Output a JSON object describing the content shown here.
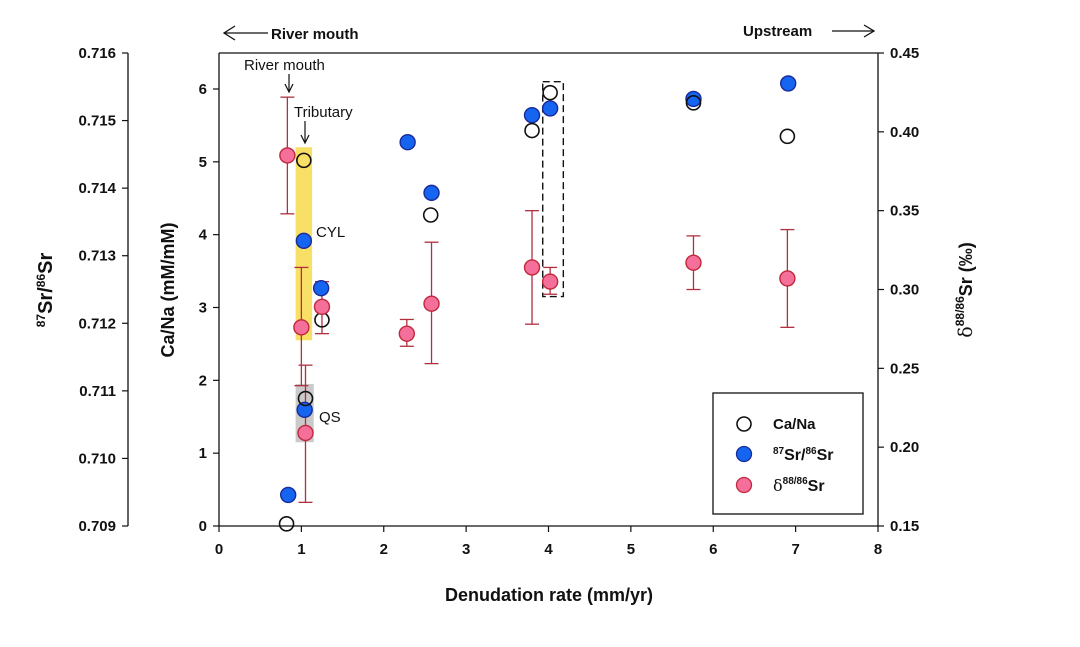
{
  "chart_data": {
    "type": "scatter",
    "title": "",
    "xlabel": "Denudation rate (mm/yr)",
    "xlim": [
      0,
      8
    ],
    "xticks": [
      "0",
      "1",
      "2",
      "3",
      "4",
      "5",
      "6",
      "7",
      "8"
    ],
    "grid": false,
    "legend_position": "bottom-right",
    "axes": {
      "ca_na": {
        "label": "Ca/Na (mM/mM)",
        "ylim": [
          0,
          6.5
        ],
        "ticks": [
          "0",
          "1",
          "2",
          "3",
          "4",
          "5",
          "6"
        ],
        "tick_values": [
          0,
          1,
          2,
          3,
          4,
          5,
          6
        ],
        "side": "left-inner"
      },
      "sr_ratio": {
        "label_sup": "87",
        "label_mid": "Sr/",
        "label_sup2": "86",
        "label_end": "Sr",
        "ylim": [
          0.709,
          0.716
        ],
        "ticks": [
          "0.709",
          "0.710",
          "0.711",
          "0.712",
          "0.713",
          "0.714",
          "0.715",
          "0.716"
        ],
        "tick_values": [
          0.709,
          0.71,
          0.711,
          0.712,
          0.713,
          0.714,
          0.715,
          0.716
        ],
        "side": "left-outer"
      },
      "delta_sr": {
        "label_delta": "δ",
        "label_sup": "88/86",
        "label_end": "Sr (‰)",
        "ylim": [
          0.15,
          0.45
        ],
        "ticks": [
          "0.15",
          "0.20",
          "0.25",
          "0.30",
          "0.35",
          "0.40",
          "0.45"
        ],
        "tick_values": [
          0.15,
          0.2,
          0.25,
          0.3,
          0.35,
          0.4,
          0.45
        ],
        "side": "right"
      }
    },
    "series": [
      {
        "name": "Ca/Na",
        "axis": "ca_na",
        "marker": "open-circle",
        "stroke": "#111111",
        "fill": "none",
        "points": [
          {
            "x": 0.82,
            "y": 0.03
          },
          {
            "x": 1.03,
            "y": 5.02
          },
          {
            "x": 1.05,
            "y": 1.75
          },
          {
            "x": 1.25,
            "y": 2.83
          },
          {
            "x": 2.57,
            "y": 4.27
          },
          {
            "x": 3.8,
            "y": 5.43
          },
          {
            "x": 4.02,
            "y": 5.95
          },
          {
            "x": 5.76,
            "y": 5.81
          },
          {
            "x": 6.9,
            "y": 5.35
          }
        ]
      },
      {
        "name": "87Sr/86Sr",
        "axis": "sr_ratio",
        "marker": "filled-circle",
        "stroke": "#1a2a9a",
        "fill": "#1565f0",
        "points": [
          {
            "x": 0.84,
            "y": 0.70946
          },
          {
            "x": 1.03,
            "y": 0.71322
          },
          {
            "x": 1.04,
            "y": 0.71072
          },
          {
            "x": 1.24,
            "y": 0.71252
          },
          {
            "x": 2.29,
            "y": 0.71468
          },
          {
            "x": 2.58,
            "y": 0.71393
          },
          {
            "x": 3.8,
            "y": 0.71508
          },
          {
            "x": 4.02,
            "y": 0.71518
          },
          {
            "x": 5.76,
            "y": 0.71532
          },
          {
            "x": 6.91,
            "y": 0.71555
          }
        ]
      },
      {
        "name": "δ88/86Sr",
        "axis": "delta_sr",
        "marker": "filled-circle",
        "stroke": "#c0283c",
        "fill": "#f4709a",
        "errorbar_color": "#b03040",
        "points": [
          {
            "x": 0.83,
            "y": 0.385,
            "ymin": 0.348,
            "ymax": 0.422
          },
          {
            "x": 1.0,
            "y": 0.276,
            "ymin": 0.239,
            "ymax": 0.314
          },
          {
            "x": 1.05,
            "y": 0.209,
            "ymin": 0.165,
            "ymax": 0.252
          },
          {
            "x": 1.25,
            "y": 0.289,
            "ymin": 0.272,
            "ymax": 0.305
          },
          {
            "x": 2.28,
            "y": 0.272,
            "ymin": 0.264,
            "ymax": 0.281
          },
          {
            "x": 2.58,
            "y": 0.291,
            "ymin": 0.253,
            "ymax": 0.33
          },
          {
            "x": 3.8,
            "y": 0.314,
            "ymin": 0.278,
            "ymax": 0.35
          },
          {
            "x": 4.02,
            "y": 0.305,
            "ymin": 0.297,
            "ymax": 0.314
          },
          {
            "x": 5.76,
            "y": 0.317,
            "ymin": 0.3,
            "ymax": 0.334
          },
          {
            "x": 6.9,
            "y": 0.307,
            "ymin": 0.276,
            "ymax": 0.338
          }
        ]
      }
    ],
    "highlights": [
      {
        "name": "tributary-band",
        "color": "#f7d94a",
        "x_range": [
          0.93,
          1.13
        ],
        "ca_na_range": [
          2.55,
          5.2
        ],
        "label": "CYL"
      },
      {
        "name": "qs-band",
        "color": "#bdbdbd",
        "x_range": [
          0.93,
          1.15
        ],
        "ca_na_range": [
          1.15,
          1.95
        ],
        "label": "QS"
      },
      {
        "name": "dashed-box",
        "color": "#111111",
        "x_range": [
          3.93,
          4.18
        ],
        "ca_na_range": [
          3.15,
          6.1
        ],
        "label": ""
      }
    ],
    "annotations": {
      "river_mouth_top": "River mouth",
      "upstream_top": "Upstream",
      "river_mouth_inner": "River mouth",
      "tributary": "Tributary",
      "cyl": "CYL",
      "qs": "QS"
    },
    "legend": [
      {
        "label": "Ca/Na",
        "series": 0
      },
      {
        "label_sup": "87",
        "label_mid": "Sr/",
        "label_sup2": "86",
        "label_end": "Sr",
        "series": 1
      },
      {
        "label_delta": "δ",
        "label_sup": "88/86",
        "label_end": "Sr",
        "series": 2
      }
    ]
  }
}
